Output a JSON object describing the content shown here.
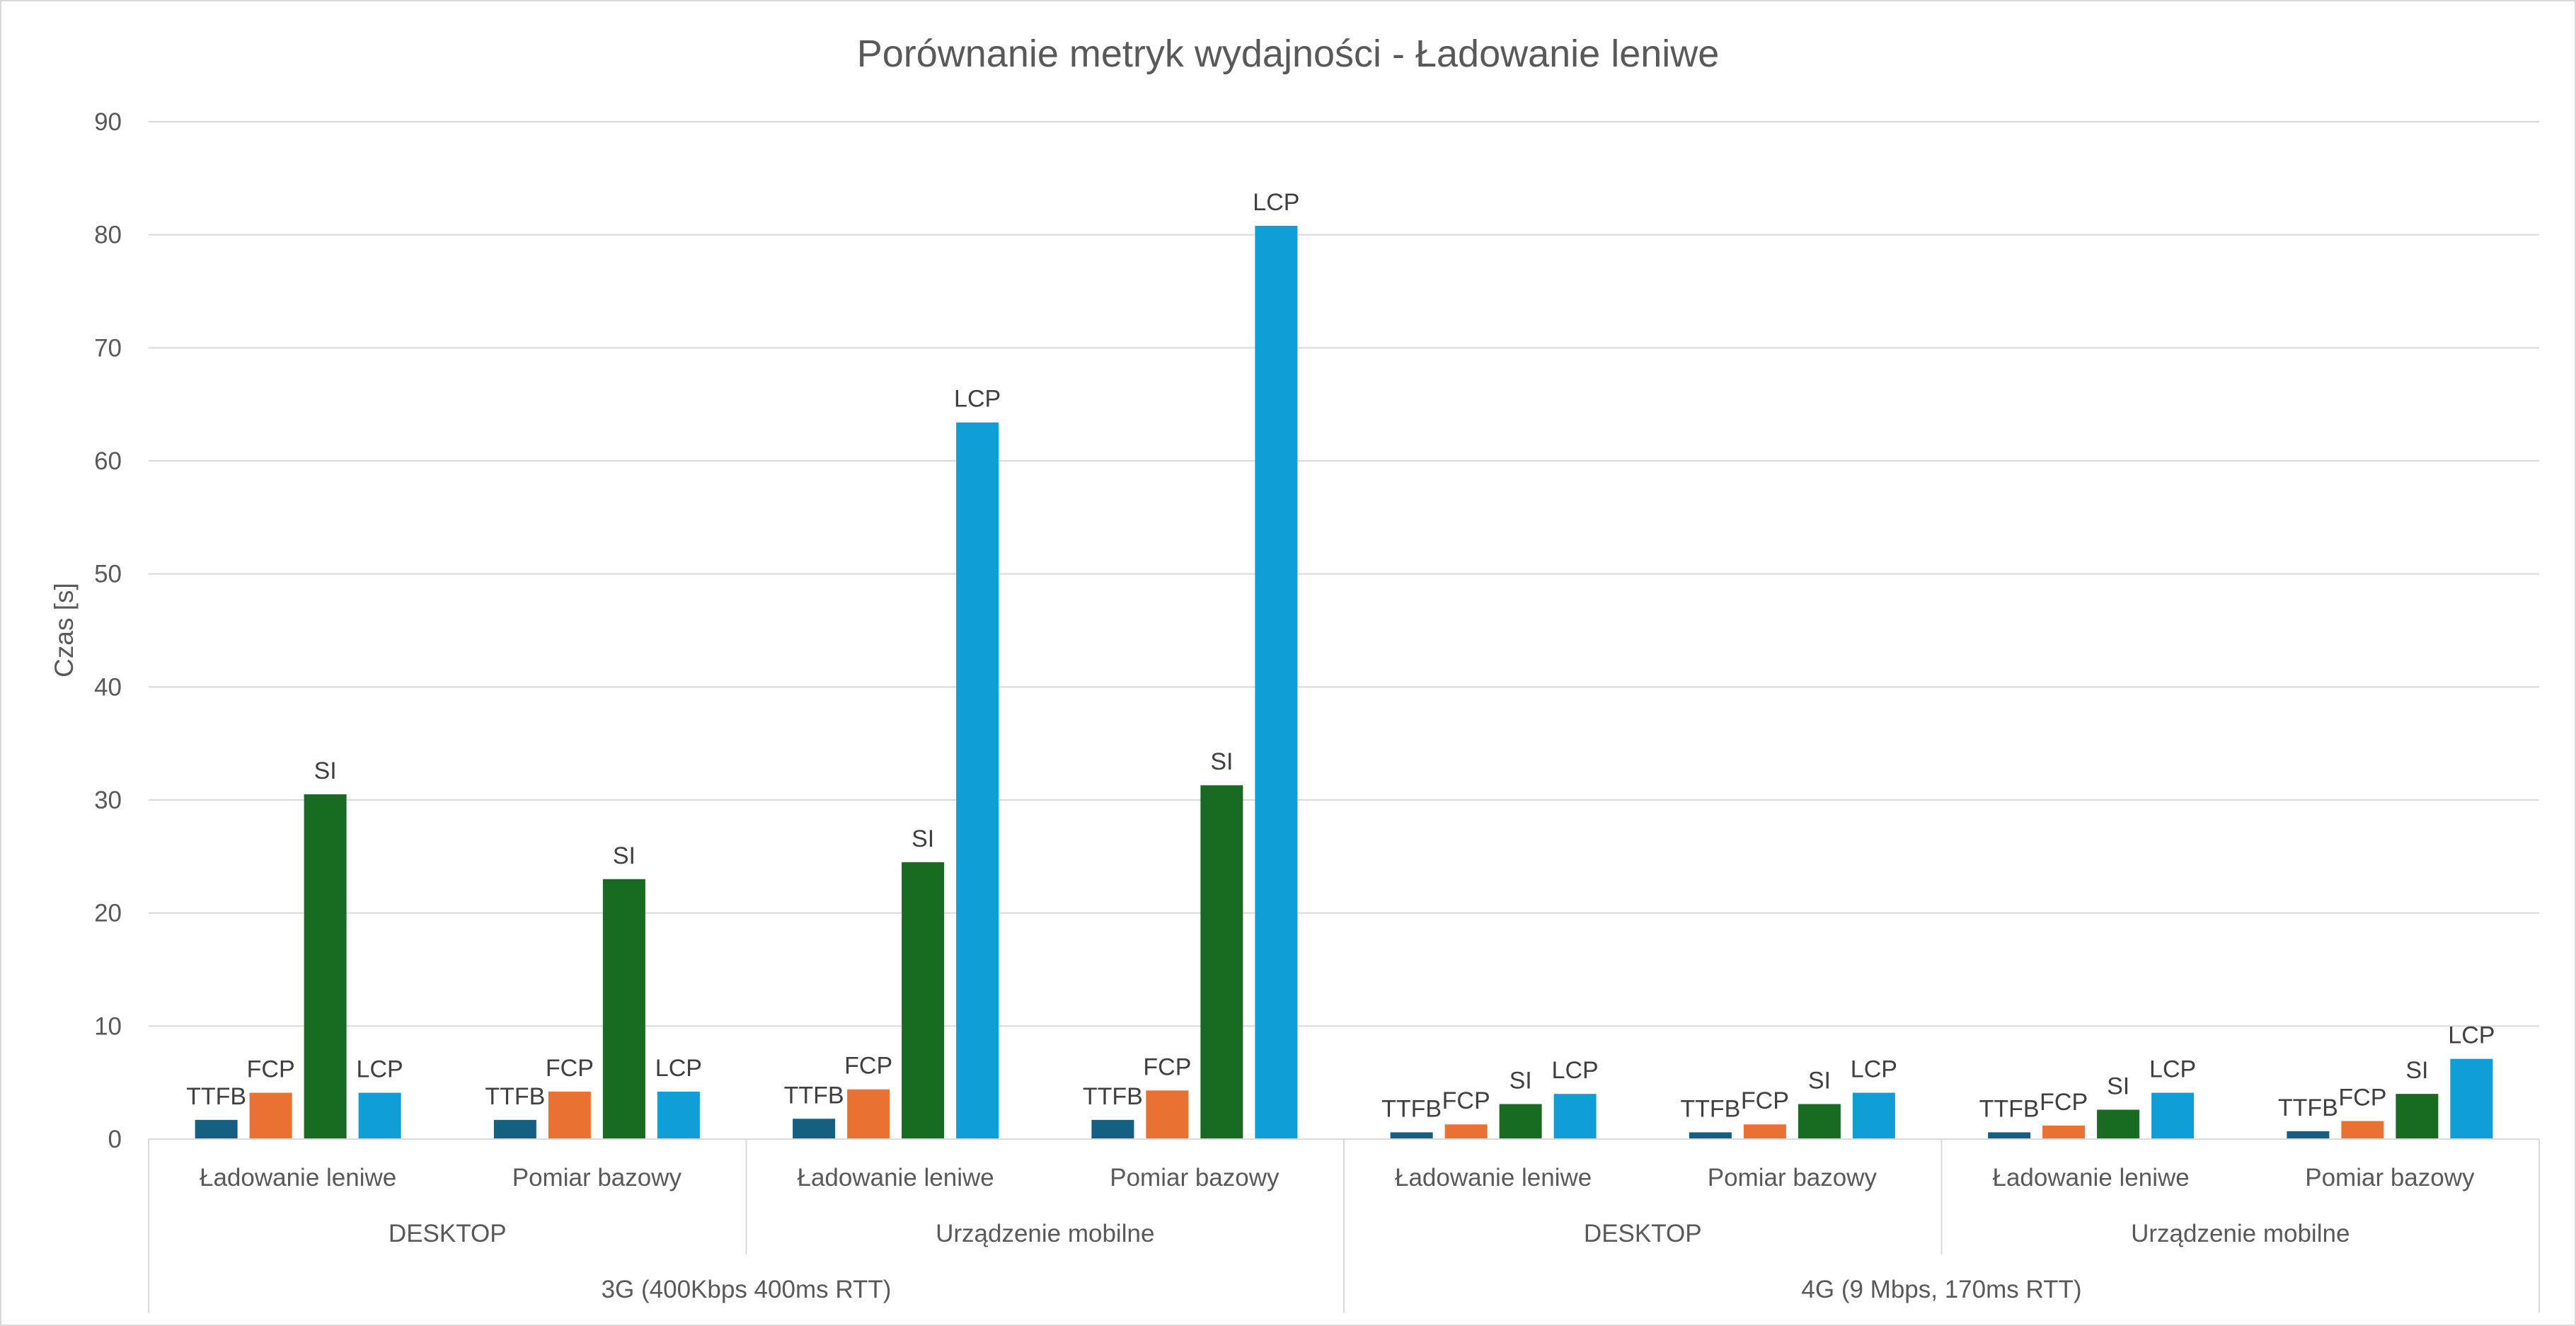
{
  "chart_data": {
    "type": "bar",
    "title": "Porównanie metryk wydajności - Ładowanie leniwe",
    "ylabel": "Czas [s]",
    "xlabel": "",
    "ylim": [
      0,
      90
    ],
    "yticks": [
      0,
      10,
      20,
      30,
      40,
      50,
      60,
      70,
      80,
      90
    ],
    "grid": true,
    "legend": "none",
    "series_order": [
      "TTFB",
      "FCP",
      "SI",
      "LCP"
    ],
    "colors": {
      "TTFB": "#156082",
      "FCP": "#E97132",
      "SI": "#196B24",
      "LCP": "#0F9ED5",
      "grid": "#d9d9d9",
      "text": "#595959"
    },
    "networks": [
      {
        "label": "3G (400Kbps 400ms RTT)",
        "devices": [
          {
            "label": "DESKTOP",
            "groups": [
              {
                "label": "Ładowanie leniwe",
                "values": {
                  "TTFB": 1.7,
                  "FCP": 4.1,
                  "SI": 30.5,
                  "LCP": 4.1
                }
              },
              {
                "label": "Pomiar bazowy",
                "values": {
                  "TTFB": 1.7,
                  "FCP": 4.2,
                  "SI": 23.0,
                  "LCP": 4.2
                }
              }
            ]
          },
          {
            "label": "Urządzenie mobilne",
            "groups": [
              {
                "label": "Ładowanie leniwe",
                "values": {
                  "TTFB": 1.8,
                  "FCP": 4.4,
                  "SI": 24.5,
                  "LCP": 63.4
                }
              },
              {
                "label": "Pomiar bazowy",
                "values": {
                  "TTFB": 1.7,
                  "FCP": 4.3,
                  "SI": 31.3,
                  "LCP": 80.8
                }
              }
            ]
          }
        ]
      },
      {
        "label": "4G (9 Mbps, 170ms RTT)",
        "devices": [
          {
            "label": "DESKTOP",
            "groups": [
              {
                "label": "Ładowanie leniwe",
                "values": {
                  "TTFB": 0.6,
                  "FCP": 1.3,
                  "SI": 3.1,
                  "LCP": 4.0
                }
              },
              {
                "label": "Pomiar bazowy",
                "values": {
                  "TTFB": 0.6,
                  "FCP": 1.3,
                  "SI": 3.1,
                  "LCP": 4.1
                }
              }
            ]
          },
          {
            "label": "Urządzenie mobilne",
            "groups": [
              {
                "label": "Ładowanie leniwe",
                "values": {
                  "TTFB": 0.6,
                  "FCP": 1.2,
                  "SI": 2.6,
                  "LCP": 4.1
                }
              },
              {
                "label": "Pomiar bazowy",
                "values": {
                  "TTFB": 0.7,
                  "FCP": 1.6,
                  "SI": 4.0,
                  "LCP": 7.1
                }
              }
            ]
          }
        ]
      }
    ]
  }
}
